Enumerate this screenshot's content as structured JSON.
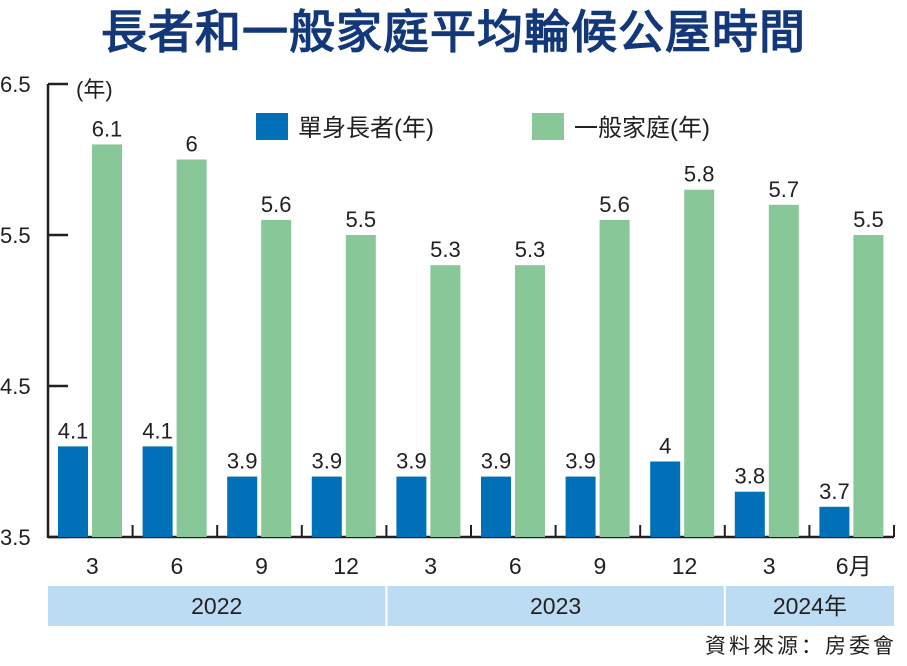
{
  "chart_data": {
    "type": "bar",
    "title": "長者和一般家庭平均輪候公屋時間",
    "ylabel": "(年)",
    "xlabel": "",
    "ylim": [
      3.5,
      6.5
    ],
    "yticks": [
      "3.5",
      "4.5",
      "5.5",
      "6.5"
    ],
    "ytick_values": [
      3.5,
      4.5,
      5.5,
      6.5
    ],
    "categories": [
      "3",
      "6",
      "9",
      "12",
      "3",
      "6",
      "9",
      "12",
      "3",
      "6月"
    ],
    "year_groups": [
      {
        "label": "2022",
        "count": 4
      },
      {
        "label": "2023",
        "count": 4
      },
      {
        "label": "2024年",
        "count": 2
      }
    ],
    "series": [
      {
        "name": "單身長者(年)",
        "color": "#0071b8",
        "values": [
          4.1,
          4.1,
          3.9,
          3.9,
          3.9,
          3.9,
          3.9,
          4,
          3.8,
          3.7
        ],
        "labels": [
          "4.1",
          "4.1",
          "3.9",
          "3.9",
          "3.9",
          "3.9",
          "3.9",
          "4",
          "3.8",
          "3.7"
        ]
      },
      {
        "name": "一般家庭(年)",
        "color": "#88c898",
        "values": [
          6.1,
          6,
          5.6,
          5.5,
          5.3,
          5.3,
          5.6,
          5.8,
          5.7,
          5.5
        ],
        "labels": [
          "6.1",
          "6",
          "5.6",
          "5.5",
          "5.3",
          "5.3",
          "5.6",
          "5.8",
          "5.7",
          "5.5"
        ]
      }
    ],
    "legend_position": "top-center",
    "grid": false,
    "source": "資料來源：房委會"
  },
  "colors": {
    "title": "#12387a",
    "year_band": "#bcdcf4",
    "axis": "#231f20"
  }
}
